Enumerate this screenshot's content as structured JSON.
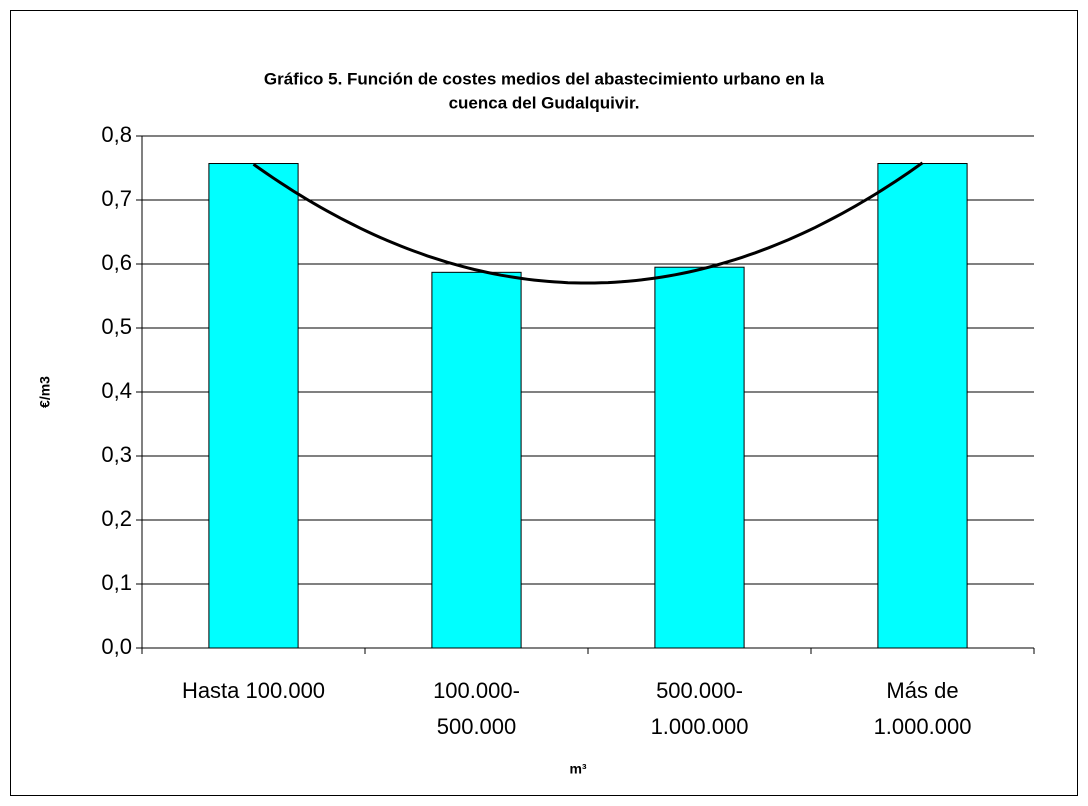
{
  "chart_data": {
    "type": "bar",
    "title": [
      "Gráfico 5. Función de costes medios del abastecimiento urbano en la",
      "cuenca del Gudalquivir."
    ],
    "y_label": "€/m3",
    "x_label": "m³",
    "categories": [
      "Hasta 100.000",
      "100.000-\n500.000",
      "500.000-\n1.000.000",
      "Más de\n1.000.000"
    ],
    "values": [
      0.757,
      0.587,
      0.595,
      0.757
    ],
    "color": "#00ffff",
    "ylim": [
      0,
      0.8
    ],
    "yticks": [
      {
        "value": 0,
        "label": "0,0"
      },
      {
        "value": 0.1,
        "label": "0,1"
      },
      {
        "value": 0.2,
        "label": "0,2"
      },
      {
        "value": 0.3,
        "label": "0,3"
      },
      {
        "value": 0.4,
        "label": "0,4"
      },
      {
        "value": 0.5,
        "label": "0,5"
      },
      {
        "value": 0.6,
        "label": "0,6"
      },
      {
        "value": 0.7,
        "label": "0,7"
      },
      {
        "value": 0.8,
        "label": "0,8"
      }
    ],
    "grid": true,
    "trendline": {
      "type": "polynomial",
      "order": 2,
      "color": "#000000"
    }
  }
}
